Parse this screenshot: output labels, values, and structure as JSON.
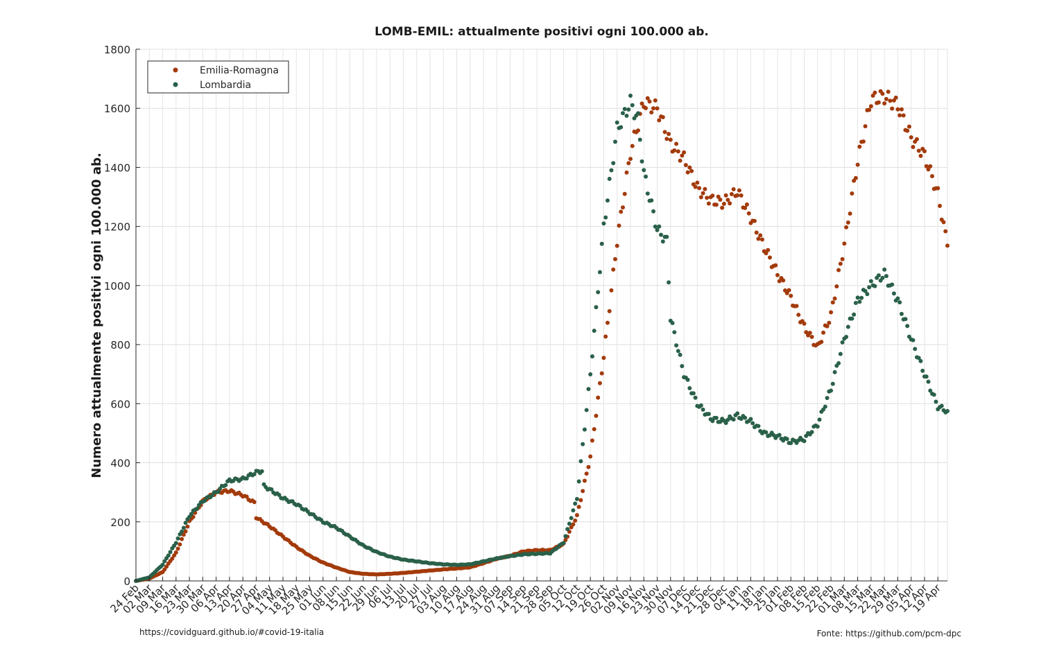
{
  "chart_data": {
    "type": "scatter",
    "title": "LOMB-EMIL: attualmente positivi ogni 100.000 ab.",
    "ylabel": "Numero attualmente positivi ogni 100.000 ab.",
    "xlabel": "",
    "ylim": [
      0,
      1800
    ],
    "yticks": [
      0,
      200,
      400,
      600,
      800,
      1000,
      1200,
      1400,
      1600,
      1800
    ],
    "grid": true,
    "legend_position": "top-left",
    "x_start": "24 Feb",
    "x_end": "24 Apr",
    "xtick_labels": [
      "24 Feb",
      "02 Mar",
      "09 Mar",
      "16 Mar",
      "23 Mar",
      "30 Mar",
      "06 Apr",
      "13 Apr",
      "20 Apr",
      "27 Apr",
      "04 May",
      "11 May",
      "18 May",
      "25 May",
      "01 Jun",
      "08 Jun",
      "15 Jun",
      "22 Jun",
      "29 Jun",
      "06 Jul",
      "13 Jul",
      "20 Jul",
      "27 Jul",
      "03 Aug",
      "10 Aug",
      "17 Aug",
      "24 Aug",
      "31 Aug",
      "07 Sep",
      "14 Sep",
      "21 Sep",
      "28 Sep",
      "05 Oct",
      "12 Oct",
      "19 Oct",
      "26 Oct",
      "02 Nov",
      "09 Nov",
      "16 Nov",
      "23 Nov",
      "30 Nov",
      "07 Dec",
      "14 Dec",
      "21 Dec",
      "28 Dec",
      "04 Jan",
      "11 Jan",
      "18 Jan",
      "25 Jan",
      "01 Feb",
      "08 Feb",
      "15 Feb",
      "22 Feb",
      "01 Mar",
      "08 Mar",
      "15 Mar",
      "22 Mar",
      "29 Mar",
      "05 Apr",
      "12 Apr",
      "19 Apr"
    ],
    "series": [
      {
        "name": "Emilia-Romagna",
        "color": "#a33a0b",
        "points": [
          [
            "24 Feb",
            0
          ],
          [
            "02 Mar",
            8
          ],
          [
            "09 Mar",
            30
          ],
          [
            "16 Mar",
            95
          ],
          [
            "23 Mar",
            200
          ],
          [
            "30 Mar",
            270
          ],
          [
            "06 Apr",
            300
          ],
          [
            "13 Apr",
            305
          ],
          [
            "20 Apr",
            290
          ],
          [
            "26 Apr",
            265
          ],
          [
            "27 Apr",
            215
          ],
          [
            "04 May",
            185
          ],
          [
            "11 May",
            150
          ],
          [
            "18 May",
            115
          ],
          [
            "25 May",
            85
          ],
          [
            "01 Jun",
            62
          ],
          [
            "08 Jun",
            45
          ],
          [
            "15 Jun",
            30
          ],
          [
            "22 Jun",
            24
          ],
          [
            "29 Jun",
            22
          ],
          [
            "06 Jul",
            24
          ],
          [
            "13 Jul",
            27
          ],
          [
            "20 Jul",
            31
          ],
          [
            "27 Jul",
            35
          ],
          [
            "03 Aug",
            39
          ],
          [
            "10 Aug",
            42
          ],
          [
            "17 Aug",
            46
          ],
          [
            "24 Aug",
            60
          ],
          [
            "31 Aug",
            75
          ],
          [
            "07 Sep",
            85
          ],
          [
            "14 Sep",
            100
          ],
          [
            "21 Sep",
            104
          ],
          [
            "28 Sep",
            104
          ],
          [
            "05 Oct",
            125
          ],
          [
            "12 Oct",
            220
          ],
          [
            "19 Oct",
            420
          ],
          [
            "26 Oct",
            760
          ],
          [
            "02 Nov",
            1150
          ],
          [
            "09 Nov",
            1450
          ],
          [
            "16 Nov",
            1620
          ],
          [
            "23 Nov",
            1600
          ],
          [
            "30 Nov",
            1480
          ],
          [
            "07 Dec",
            1430
          ],
          [
            "14 Dec",
            1330
          ],
          [
            "21 Dec",
            1290
          ],
          [
            "28 Dec",
            1280
          ],
          [
            "04 Jan",
            1320
          ],
          [
            "11 Jan",
            1230
          ],
          [
            "18 Jan",
            1130
          ],
          [
            "25 Jan",
            1040
          ],
          [
            "01 Feb",
            960
          ],
          [
            "08 Feb",
            860
          ],
          [
            "15 Feb",
            790
          ],
          [
            "22 Feb",
            900
          ],
          [
            "01 Mar",
            1140
          ],
          [
            "08 Mar",
            1420
          ],
          [
            "15 Mar",
            1630
          ],
          [
            "22 Mar",
            1640
          ],
          [
            "29 Mar",
            1610
          ],
          [
            "05 Apr",
            1500
          ],
          [
            "12 Apr",
            1440
          ],
          [
            "19 Apr",
            1310
          ],
          [
            "24 Apr",
            1135
          ]
        ]
      },
      {
        "name": "Lombardia",
        "color": "#2a6049",
        "points": [
          [
            "24 Feb",
            0
          ],
          [
            "02 Mar",
            12
          ],
          [
            "09 Mar",
            55
          ],
          [
            "16 Mar",
            130
          ],
          [
            "23 Mar",
            220
          ],
          [
            "30 Mar",
            270
          ],
          [
            "06 Apr",
            300
          ],
          [
            "13 Apr",
            340
          ],
          [
            "20 Apr",
            345
          ],
          [
            "27 Apr",
            368
          ],
          [
            "30 Apr",
            372
          ],
          [
            "01 May",
            322
          ],
          [
            "04 May",
            310
          ],
          [
            "11 May",
            280
          ],
          [
            "18 May",
            260
          ],
          [
            "25 May",
            230
          ],
          [
            "01 Jun",
            200
          ],
          [
            "08 Jun",
            180
          ],
          [
            "15 Jun",
            150
          ],
          [
            "22 Jun",
            120
          ],
          [
            "29 Jun",
            98
          ],
          [
            "06 Jul",
            82
          ],
          [
            "13 Jul",
            72
          ],
          [
            "20 Jul",
            66
          ],
          [
            "27 Jul",
            60
          ],
          [
            "03 Aug",
            56
          ],
          [
            "10 Aug",
            54
          ],
          [
            "17 Aug",
            56
          ],
          [
            "24 Aug",
            66
          ],
          [
            "31 Aug",
            76
          ],
          [
            "07 Sep",
            84
          ],
          [
            "14 Sep",
            90
          ],
          [
            "21 Sep",
            92
          ],
          [
            "28 Sep",
            94
          ],
          [
            "05 Oct",
            130
          ],
          [
            "12 Oct",
            280
          ],
          [
            "19 Oct",
            700
          ],
          [
            "26 Oct",
            1200
          ],
          [
            "02 Nov",
            1530
          ],
          [
            "09 Nov",
            1620
          ],
          [
            "13 Nov",
            1560
          ],
          [
            "16 Nov",
            1380
          ],
          [
            "23 Nov",
            1190
          ],
          [
            "28 Nov",
            1150
          ],
          [
            "30 Nov",
            890
          ],
          [
            "07 Dec",
            700
          ],
          [
            "14 Dec",
            600
          ],
          [
            "21 Dec",
            550
          ],
          [
            "28 Dec",
            540
          ],
          [
            "04 Jan",
            560
          ],
          [
            "11 Jan",
            540
          ],
          [
            "18 Jan",
            500
          ],
          [
            "25 Jan",
            490
          ],
          [
            "01 Feb",
            470
          ],
          [
            "08 Feb",
            480
          ],
          [
            "15 Feb",
            530
          ],
          [
            "22 Feb",
            650
          ],
          [
            "01 Mar",
            820
          ],
          [
            "08 Mar",
            950
          ],
          [
            "15 Mar",
            1000
          ],
          [
            "22 Mar",
            1040
          ],
          [
            "29 Mar",
            950
          ],
          [
            "05 Apr",
            820
          ],
          [
            "12 Apr",
            700
          ],
          [
            "19 Apr",
            590
          ],
          [
            "24 Apr",
            575
          ]
        ]
      }
    ]
  },
  "footer": {
    "left": "https://covidguard.github.io/#covid-19-italia",
    "right": "Fonte: https://github.com/pcm-dpc"
  }
}
